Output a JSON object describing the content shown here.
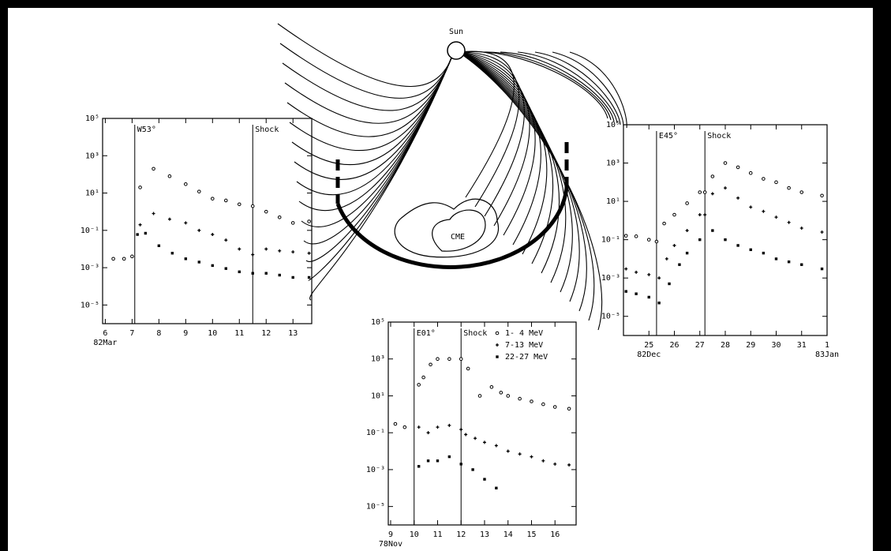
{
  "diagram": {
    "sun_label": "Sun",
    "cme_label": "CME"
  },
  "chart_data": [
    {
      "type": "scatter",
      "ylog": true,
      "xlim": [
        5.9,
        13.7
      ],
      "ylim": [
        1e-06,
        100000
      ],
      "xticks": [
        6,
        7,
        8,
        9,
        10,
        11,
        12,
        13
      ],
      "yticks": [
        {
          "value": 100000,
          "label": "10⁵"
        },
        {
          "value": 1000,
          "label": "10³"
        },
        {
          "value": 10,
          "label": "10¹"
        },
        {
          "value": 0.1,
          "label": "10⁻¹"
        },
        {
          "value": 0.001,
          "label": "10⁻³"
        },
        {
          "value": 1e-05,
          "label": "10⁻⁵"
        }
      ],
      "x_date_labels": [
        {
          "value": 6,
          "label": "82Mar"
        }
      ],
      "annotations": [
        {
          "x": 7.1,
          "text": "W53°"
        },
        {
          "x": 11.5,
          "text": "Shock"
        }
      ],
      "series": [
        {
          "marker": "circle",
          "color": "#000000",
          "x": [
            6.3,
            6.7,
            7.0,
            7.3,
            7.8,
            8.4,
            9.0,
            9.5,
            10.0,
            10.5,
            11.0,
            11.5,
            12.0,
            12.5,
            13.0,
            13.6
          ],
          "values": [
            0.003,
            0.003,
            0.004,
            20,
            200,
            80,
            30,
            12,
            5,
            4,
            2.5,
            2,
            1,
            0.5,
            0.25,
            0.3
          ]
        },
        {
          "marker": "plus",
          "color": "#000000",
          "x": [
            7.3,
            7.8,
            8.4,
            9.0,
            9.5,
            10.0,
            10.5,
            11.0,
            11.5,
            12.0,
            12.5,
            13.0,
            13.6
          ],
          "values": [
            0.2,
            0.8,
            0.4,
            0.25,
            0.1,
            0.06,
            0.03,
            0.01,
            0.005,
            0.01,
            0.008,
            0.007,
            0.006
          ]
        },
        {
          "marker": "square",
          "color": "#000000",
          "x": [
            7.2,
            7.5,
            8.0,
            8.5,
            9.0,
            9.5,
            10.0,
            10.5,
            11.0,
            11.5,
            12.0,
            12.5,
            13.0,
            13.6
          ],
          "values": [
            0.06,
            0.07,
            0.015,
            0.006,
            0.003,
            0.002,
            0.0013,
            0.0009,
            0.0006,
            0.0005,
            0.0005,
            0.0004,
            0.0003,
            0.0003
          ]
        }
      ]
    },
    {
      "type": "scatter",
      "ylog": true,
      "xlim": [
        24,
        32
      ],
      "ylim": [
        1e-06,
        100000
      ],
      "xticks": [
        25,
        26,
        27,
        28,
        29,
        30,
        31,
        {
          "value": 32,
          "label": "1"
        }
      ],
      "yticks": [
        {
          "value": 100000,
          "label": "10⁵"
        },
        {
          "value": 1000,
          "label": "10³"
        },
        {
          "value": 10,
          "label": "10¹"
        },
        {
          "value": 0.1,
          "label": "10⁻¹"
        },
        {
          "value": 0.001,
          "label": "10⁻³"
        },
        {
          "value": 1e-05,
          "label": "10⁻⁵"
        }
      ],
      "x_date_labels": [
        {
          "value": 25,
          "label": "82Dec"
        },
        {
          "value": 32,
          "label": "83Jan"
        }
      ],
      "annotations": [
        {
          "x": 25.3,
          "text": "E45°"
        },
        {
          "x": 27.2,
          "text": "Shock"
        }
      ],
      "series": [
        {
          "marker": "circle",
          "color": "#000000",
          "x": [
            24.1,
            24.5,
            25.0,
            25.3,
            25.6,
            26.0,
            26.5,
            27.0,
            27.2,
            27.5,
            28.0,
            28.5,
            29.0,
            29.5,
            30.0,
            30.5,
            31.0,
            31.8
          ],
          "values": [
            0.16,
            0.15,
            0.1,
            0.08,
            0.7,
            2,
            8,
            30,
            30,
            200,
            1000,
            600,
            300,
            150,
            100,
            50,
            30,
            20
          ]
        },
        {
          "marker": "plus",
          "color": "#000000",
          "x": [
            24.1,
            24.5,
            25.0,
            25.4,
            25.7,
            26.0,
            26.5,
            27.0,
            27.2,
            27.5,
            28.0,
            28.5,
            29.0,
            29.5,
            30.0,
            30.5,
            31.0,
            31.8
          ],
          "values": [
            0.003,
            0.002,
            0.0015,
            0.001,
            0.01,
            0.05,
            0.3,
            2,
            2,
            25,
            50,
            15,
            5,
            3,
            1.5,
            0.8,
            0.4,
            0.25
          ]
        },
        {
          "marker": "square",
          "color": "#000000",
          "x": [
            24.1,
            24.5,
            25.0,
            25.4,
            25.8,
            26.2,
            26.5,
            27.0,
            27.5,
            28.0,
            28.5,
            29.0,
            29.5,
            30.0,
            30.5,
            31.0,
            31.8
          ],
          "values": [
            0.0002,
            0.00015,
            0.0001,
            5e-05,
            0.0005,
            0.005,
            0.02,
            0.1,
            0.3,
            0.1,
            0.05,
            0.03,
            0.02,
            0.01,
            0.007,
            0.005,
            0.003
          ]
        }
      ]
    },
    {
      "type": "scatter",
      "ylog": true,
      "xlim": [
        8.9,
        16.9
      ],
      "ylim": [
        1e-06,
        100000
      ],
      "xticks": [
        9,
        10,
        11,
        12,
        13,
        14,
        15,
        16
      ],
      "yticks": [
        {
          "value": 100000,
          "label": "10⁵"
        },
        {
          "value": 1000,
          "label": "10³"
        },
        {
          "value": 10,
          "label": "10¹"
        },
        {
          "value": 0.1,
          "label": "10⁻¹"
        },
        {
          "value": 0.001,
          "label": "10⁻³"
        },
        {
          "value": 1e-05,
          "label": "10⁻⁵"
        }
      ],
      "x_date_labels": [
        {
          "value": 9,
          "label": "78Nov"
        }
      ],
      "annotations": [
        {
          "x": 10.0,
          "text": "E01°"
        },
        {
          "x": 12.0,
          "text": "Shock"
        }
      ],
      "legend": "upper right",
      "series": [
        {
          "name": "1- 4 MeV",
          "marker": "circle",
          "color": "#000000",
          "x": [
            9.2,
            9.6,
            10.2,
            10.4,
            10.7,
            11.0,
            11.5,
            12.0,
            12.3,
            12.8,
            13.3,
            13.7,
            14.0,
            14.5,
            15.0,
            15.5,
            16.0,
            16.6
          ],
          "values": [
            0.3,
            0.2,
            40,
            100,
            500,
            1000,
            1000,
            1000,
            300,
            10,
            30,
            15,
            10,
            7,
            5,
            3.5,
            2.5,
            2
          ]
        },
        {
          "name": "7-13 MeV",
          "marker": "plus",
          "color": "#000000",
          "x": [
            10.2,
            10.6,
            11.0,
            11.5,
            12.0,
            12.2,
            12.6,
            13.0,
            13.5,
            14.0,
            14.5,
            15.0,
            15.5,
            16.0,
            16.6
          ],
          "values": [
            0.2,
            0.1,
            0.2,
            0.25,
            0.15,
            0.08,
            0.05,
            0.03,
            0.02,
            0.01,
            0.007,
            0.005,
            0.003,
            0.002,
            0.0018
          ]
        },
        {
          "name": "22-27 MeV",
          "marker": "square",
          "color": "#000000",
          "x": [
            10.2,
            10.6,
            11.0,
            11.5,
            12.0,
            12.5,
            13.0,
            13.5
          ],
          "values": [
            0.0015,
            0.003,
            0.003,
            0.005,
            0.002,
            0.001,
            0.0003,
            0.0001
          ]
        }
      ]
    }
  ]
}
